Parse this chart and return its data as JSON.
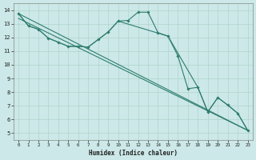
{
  "background_color": "#cce8e8",
  "grid_color": "#b0d4cc",
  "line_color": "#2e7d6e",
  "xlabel": "Humidex (Indice chaleur)",
  "xlim": [
    -0.5,
    23.5
  ],
  "ylim": [
    4.5,
    14.5
  ],
  "xticks": [
    0,
    1,
    2,
    3,
    4,
    5,
    6,
    7,
    8,
    9,
    10,
    11,
    12,
    13,
    14,
    15,
    16,
    17,
    18,
    19,
    20,
    21,
    22,
    23
  ],
  "yticks": [
    5,
    6,
    7,
    8,
    9,
    10,
    11,
    12,
    13,
    14
  ],
  "main_x": [
    0,
    1,
    2,
    3,
    4,
    5,
    6,
    7,
    8,
    9,
    10,
    11,
    12,
    13,
    14,
    15,
    16,
    17,
    18,
    19,
    20,
    21,
    22,
    23
  ],
  "main_y": [
    13.75,
    12.85,
    12.6,
    11.95,
    11.65,
    11.35,
    11.35,
    11.3,
    11.85,
    12.4,
    13.2,
    13.25,
    13.85,
    13.85,
    12.35,
    12.1,
    10.65,
    8.25,
    8.35,
    6.55,
    7.6,
    7.05,
    6.45,
    5.2
  ],
  "line2_x": [
    0,
    1,
    2,
    3,
    4,
    5,
    6,
    7,
    8,
    9,
    10,
    15,
    18,
    19,
    20,
    21,
    22,
    23
  ],
  "line2_y": [
    13.75,
    12.85,
    12.6,
    11.95,
    11.65,
    11.35,
    11.35,
    11.3,
    11.85,
    12.4,
    13.2,
    12.1,
    8.35,
    6.55,
    7.6,
    7.05,
    6.45,
    5.2
  ],
  "line3_x": [
    0,
    23
  ],
  "line3_y": [
    13.75,
    5.2
  ],
  "line4_x": [
    0,
    23
  ],
  "line4_y": [
    13.4,
    5.2
  ]
}
